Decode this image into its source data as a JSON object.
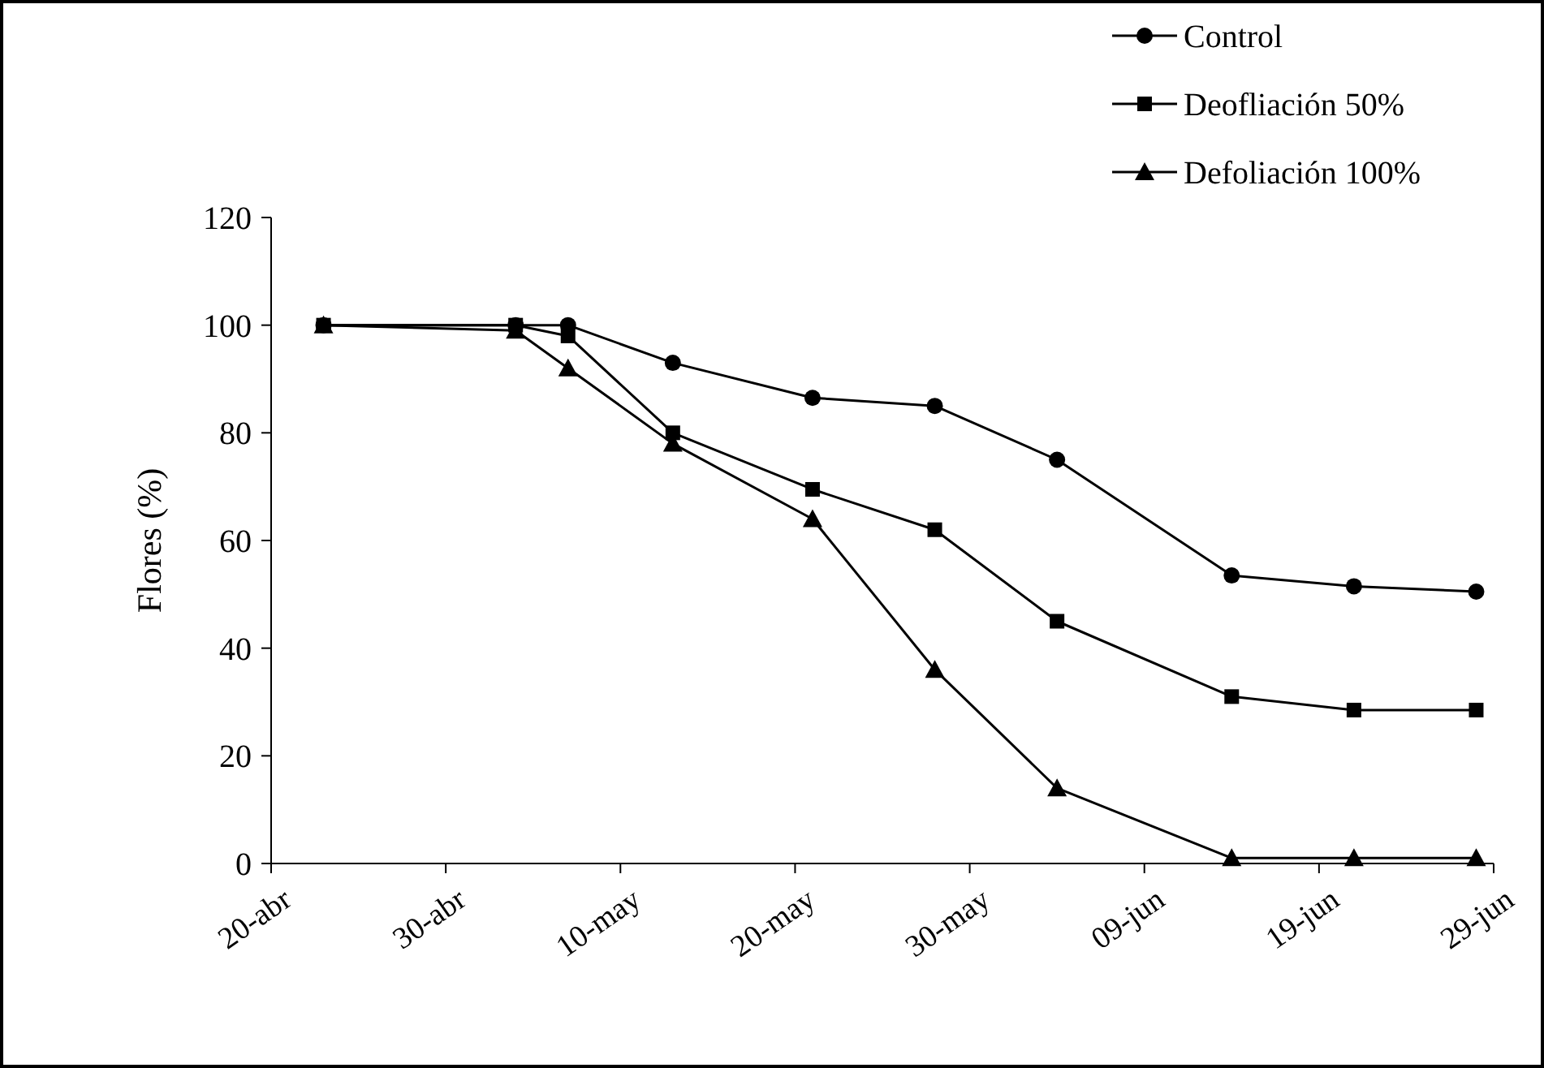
{
  "chart_data": {
    "type": "line",
    "ylabel": "Flores (%)",
    "x": [
      "--04-23",
      "--05-04",
      "--05-07",
      "--05-13",
      "--05-21",
      "--05-28",
      "--06-04",
      "--06-14",
      "--06-21",
      "--06-28"
    ],
    "series": [
      {
        "name": "Control",
        "color": "#000000",
        "marker": "circle",
        "values": [
          100,
          100,
          100,
          93,
          86.5,
          85,
          75,
          53.5,
          51.5,
          50.5
        ]
      },
      {
        "name": "Deofliación 50%",
        "color": "#000000",
        "marker": "square",
        "values": [
          100,
          100,
          98,
          80,
          69.5,
          62,
          45,
          31,
          28.5,
          28.5
        ]
      },
      {
        "name": "Defoliación 100%",
        "color": "#000000",
        "marker": "triangle",
        "values": [
          100,
          99,
          92,
          78,
          64,
          36,
          14,
          1,
          1,
          1
        ]
      }
    ],
    "xlim": [
      "--04-20",
      "--06-29"
    ],
    "xticks": [
      {
        "value": "--04-20",
        "label": "20-abr"
      },
      {
        "value": "--04-30",
        "label": "30-abr"
      },
      {
        "value": "--05-10",
        "label": "10-may"
      },
      {
        "value": "--05-20",
        "label": "20-may"
      },
      {
        "value": "--05-30",
        "label": "30-may"
      },
      {
        "value": "--06-09",
        "label": "09-jun"
      },
      {
        "value": "--06-19",
        "label": "19-jun"
      },
      {
        "value": "--06-29",
        "label": "29-jun"
      }
    ],
    "ylim": [
      0,
      120
    ],
    "yticks": [
      0,
      20,
      40,
      60,
      80,
      100,
      120
    ],
    "grid": false,
    "legend": "top right",
    "line_style": "solid"
  }
}
